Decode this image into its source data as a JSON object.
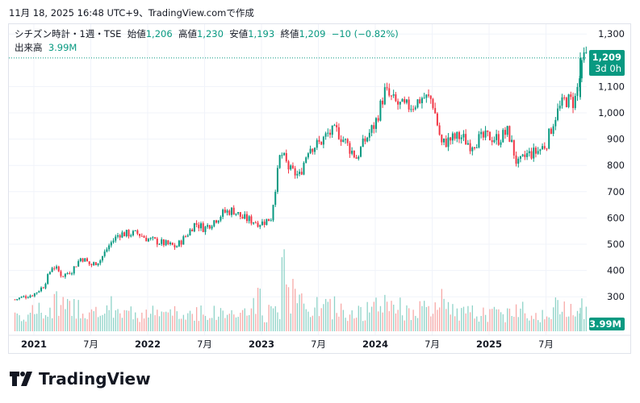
{
  "caption": "11月 18, 2025 16:48 UTC+9、TradingView.comで作成",
  "legend": {
    "symbol": "シチズン時計・1週・TSE",
    "open_label": "始値",
    "open": "1,206",
    "high_label": "高値",
    "high": "1,230",
    "low_label": "安値",
    "low": "1,193",
    "close_label": "終値",
    "close": "1,209",
    "change": "−10 (−0.82%)",
    "volume_label": "出来高",
    "volume": "3.99M"
  },
  "price_tag": {
    "price": "1,209",
    "countdown": "3d 0h"
  },
  "volume_tag": "3.99M",
  "logo_text": "TradingView",
  "colors": {
    "up": "#089981",
    "down": "#f23645",
    "up_vol": "#8fd3c8",
    "down_vol": "#f7a9a7"
  },
  "chart_data": {
    "type": "candlestick",
    "interval": "1 week",
    "y_ticks": [
      300,
      400,
      500,
      600,
      700,
      800,
      900,
      1000,
      1100,
      1300
    ],
    "y_tick_labels": [
      "300",
      "400",
      "500",
      "600",
      "700",
      "800",
      "900",
      "1,000",
      "1,100",
      "1,300"
    ],
    "ylim": [
      260,
      1320
    ],
    "x_tick_labels": [
      "2021",
      "7月",
      "2022",
      "7月",
      "2023",
      "7月",
      "2024",
      "7月",
      "2025",
      "7月"
    ],
    "months": [
      "2020-11",
      "2020-12",
      "2021-01",
      "2021-02",
      "2021-03",
      "2021-04",
      "2021-05",
      "2021-06",
      "2021-07",
      "2021-08",
      "2021-09",
      "2021-10",
      "2021-11",
      "2021-12",
      "2022-01",
      "2022-02",
      "2022-03",
      "2022-04",
      "2022-05",
      "2022-06",
      "2022-07",
      "2022-08",
      "2022-09",
      "2022-10",
      "2022-11",
      "2022-12",
      "2023-01",
      "2023-02",
      "2023-03",
      "2023-04",
      "2023-05",
      "2023-06",
      "2023-07",
      "2023-08",
      "2023-09",
      "2023-10",
      "2023-11",
      "2023-12",
      "2024-01",
      "2024-02",
      "2024-03",
      "2024-04",
      "2024-05",
      "2024-06",
      "2024-07",
      "2024-08",
      "2024-09",
      "2024-10",
      "2024-11",
      "2024-12",
      "2025-01",
      "2025-02",
      "2025-03",
      "2025-04",
      "2025-05",
      "2025-06",
      "2025-07",
      "2025-08",
      "2025-09",
      "2025-10",
      "2025-11"
    ],
    "monthly_close_approx": [
      290,
      300,
      310,
      340,
      420,
      380,
      400,
      450,
      420,
      440,
      500,
      540,
      540,
      540,
      520,
      510,
      500,
      490,
      530,
      580,
      560,
      590,
      620,
      630,
      600,
      590,
      580,
      600,
      850,
      780,
      760,
      870,
      880,
      920,
      930,
      880,
      830,
      900,
      960,
      1080,
      1040,
      1020,
      1030,
      1060,
      1050,
      880,
      900,
      910,
      880,
      900,
      910,
      900,
      930,
      800,
      840,
      850,
      880,
      990,
      1050,
      1040,
      1209
    ],
    "monthly_avg_weekly_volume_M_approx": [
      3,
      3,
      3.5,
      3,
      5,
      4,
      4,
      3.5,
      3,
      3,
      4,
      3.5,
      3,
      3,
      3,
      3,
      3,
      2.5,
      3,
      3.5,
      3,
      3,
      3,
      3,
      3,
      5,
      3,
      4,
      10,
      6,
      5,
      4,
      4,
      4,
      3.5,
      3.5,
      3,
      3.5,
      4,
      5,
      4,
      3.5,
      3.5,
      3.5,
      3.5,
      5,
      3.5,
      3,
      3,
      3,
      3,
      3,
      3.5,
      4,
      3,
      3,
      3,
      4,
      4,
      5,
      3.99
    ],
    "last_candle": {
      "open": 1206,
      "high": 1230,
      "low": 1193,
      "close": 1209,
      "volume_M": 3.99
    }
  }
}
